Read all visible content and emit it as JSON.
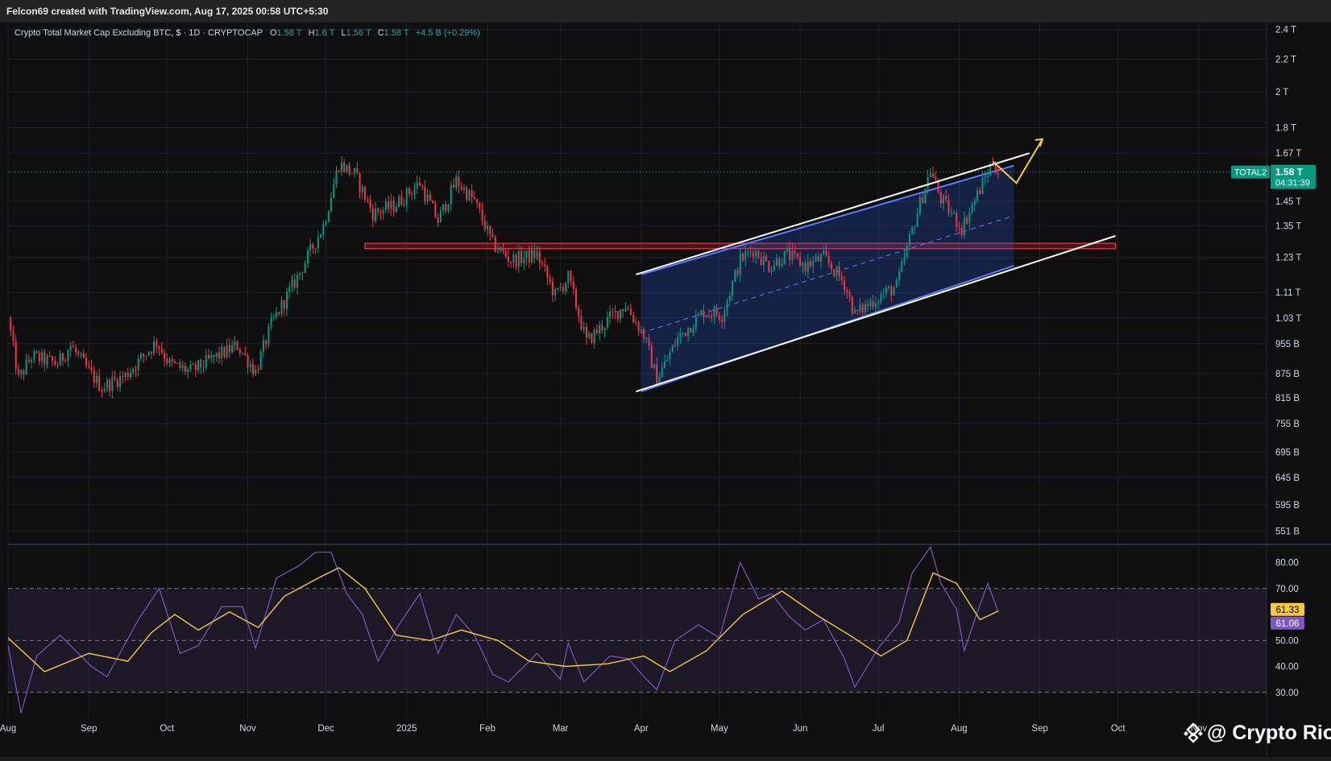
{
  "header": {
    "text": "Felcon69 created with TradingView.com, Aug 17, 2025 00:58 UTC+5:30"
  },
  "legend": {
    "symbol": "Crypto Total Market Cap Excluding BTC, $ · 1D · CRYPTOCAP",
    "o_label": "O",
    "o_value": "1.58 T",
    "h_label": "H",
    "h_value": "1.6 T",
    "l_label": "L",
    "l_value": "1.56 T",
    "c_label": "C",
    "c_value": "1.58 T",
    "change": "+4.5 B (+0.29%)"
  },
  "price_badge": {
    "ticker": "TOTAL2",
    "price": "1.58 T",
    "countdown": "04:31:39",
    "color": "#089981"
  },
  "rsi_badges": {
    "ma_value": "61.33",
    "ma_color": "#f7c843",
    "rsi_value": "61.06",
    "rsi_color": "#7e57c2"
  },
  "watermark": {
    "text": "@ Crypto Rio",
    "icon": "binance-diamond-icon"
  },
  "chart_data": [
    {
      "type": "candlestick",
      "title": "Crypto Total Market Cap Excluding BTC",
      "scale": "log",
      "y_tick_labels": [
        "2.4 T",
        "2.2 T",
        "2 T",
        "1.8 T",
        "1.67 T",
        "1.45 T",
        "1.35 T",
        "1.23 T",
        "1.11 T",
        "1.03 T",
        "955 B",
        "875 B",
        "815 B",
        "755 B",
        "695 B",
        "645 B",
        "595 B",
        "551 B"
      ],
      "y_tick_values": [
        2.4,
        2.2,
        2.0,
        1.8,
        1.67,
        1.45,
        1.35,
        1.23,
        1.11,
        1.03,
        0.955,
        0.875,
        0.815,
        0.755,
        0.695,
        0.645,
        0.595,
        0.551
      ],
      "ylim": [
        0.53,
        2.45
      ],
      "x_tick_labels": [
        "Aug",
        "Sep",
        "Oct",
        "Nov",
        "Dec",
        "2025",
        "Feb",
        "Mar",
        "Apr",
        "May",
        "Jun",
        "Jul",
        "Aug",
        "Sep",
        "Oct",
        "Nov"
      ],
      "x_tick_dates": [
        "2024-08-01",
        "2024-09-01",
        "2024-10-01",
        "2024-11-01",
        "2024-12-01",
        "2025-01-01",
        "2025-02-01",
        "2025-03-01",
        "2025-04-01",
        "2025-05-01",
        "2025-06-01",
        "2025-07-01",
        "2025-08-01",
        "2025-09-01",
        "2025-10-01",
        "2025-11-01"
      ],
      "date_range": [
        "2024-08-01",
        "2025-11-27"
      ],
      "last_date": "2025-08-16",
      "up_color": "#089981",
      "down_color": "#f23645",
      "grid": true,
      "price_path": [
        [
          "2024-08-01",
          1.03
        ],
        [
          "2024-08-05",
          0.86
        ],
        [
          "2024-08-10",
          0.92
        ],
        [
          "2024-08-20",
          0.9
        ],
        [
          "2024-08-25",
          0.95
        ],
        [
          "2024-09-01",
          0.88
        ],
        [
          "2024-09-06",
          0.84
        ],
        [
          "2024-09-15",
          0.87
        ],
        [
          "2024-09-27",
          0.96
        ],
        [
          "2024-10-02",
          0.9
        ],
        [
          "2024-10-10",
          0.88
        ],
        [
          "2024-10-20",
          0.92
        ],
        [
          "2024-10-28",
          0.95
        ],
        [
          "2024-11-04",
          0.88
        ],
        [
          "2024-11-10",
          1.01
        ],
        [
          "2024-11-20",
          1.16
        ],
        [
          "2024-11-30",
          1.35
        ],
        [
          "2024-12-06",
          1.62
        ],
        [
          "2024-12-12",
          1.57
        ],
        [
          "2024-12-19",
          1.4
        ],
        [
          "2024-12-27",
          1.43
        ],
        [
          "2025-01-06",
          1.53
        ],
        [
          "2025-01-13",
          1.37
        ],
        [
          "2025-01-20",
          1.54
        ],
        [
          "2025-01-27",
          1.45
        ],
        [
          "2025-02-03",
          1.28
        ],
        [
          "2025-02-10",
          1.22
        ],
        [
          "2025-02-20",
          1.24
        ],
        [
          "2025-02-27",
          1.1
        ],
        [
          "2025-03-04",
          1.16
        ],
        [
          "2025-03-11",
          0.96
        ],
        [
          "2025-03-20",
          1.03
        ],
        [
          "2025-03-26",
          1.07
        ],
        [
          "2025-04-02",
          0.98
        ],
        [
          "2025-04-07",
          0.86
        ],
        [
          "2025-04-15",
          0.97
        ],
        [
          "2025-04-25",
          1.05
        ],
        [
          "2025-05-02",
          1.04
        ],
        [
          "2025-05-09",
          1.22
        ],
        [
          "2025-05-14",
          1.26
        ],
        [
          "2025-05-20",
          1.2
        ],
        [
          "2025-05-27",
          1.24
        ],
        [
          "2025-06-03",
          1.2
        ],
        [
          "2025-06-10",
          1.23
        ],
        [
          "2025-06-18",
          1.14
        ],
        [
          "2025-06-22",
          1.04
        ],
        [
          "2025-06-30",
          1.09
        ],
        [
          "2025-07-08",
          1.13
        ],
        [
          "2025-07-15",
          1.37
        ],
        [
          "2025-07-21",
          1.59
        ],
        [
          "2025-07-25",
          1.46
        ],
        [
          "2025-08-02",
          1.34
        ],
        [
          "2025-08-08",
          1.48
        ],
        [
          "2025-08-14",
          1.63
        ],
        [
          "2025-08-16",
          1.58
        ]
      ],
      "resistance_zone": {
        "from": 1.262,
        "to": 1.282,
        "start": "2024-12-16",
        "end": "2025-09-30",
        "color": "#f23645"
      },
      "channel_upper": [
        [
          "2025-04-01",
          1.17
        ],
        [
          "2025-08-22",
          1.61
        ]
      ],
      "channel_lower": [
        [
          "2025-04-01",
          0.83
        ],
        [
          "2025-08-22",
          1.2
        ]
      ],
      "projection_upper": [
        [
          "2025-03-30",
          1.17
        ],
        [
          "2025-08-28",
          1.67
        ]
      ],
      "projection_lower": [
        [
          "2025-03-30",
          0.83
        ],
        [
          "2025-09-30",
          1.31
        ]
      ],
      "projection_path": [
        [
          "2025-08-14",
          1.63
        ],
        [
          "2025-08-23",
          1.53
        ],
        [
          "2025-09-02",
          1.74
        ]
      ],
      "current_price": 1.58
    },
    {
      "type": "line",
      "title": "",
      "y_tick_labels": [
        "80.00",
        "70.00",
        "50.00",
        "40.00",
        "30.00"
      ],
      "y_tick_values": [
        80,
        70,
        50,
        40,
        30
      ],
      "ylim": [
        20,
        87
      ],
      "band": [
        30,
        70
      ],
      "midline": 50,
      "series": [
        {
          "color": "#7e57c2",
          "points": [
            [
              "2024-08-01",
              48
            ],
            [
              "2024-08-06",
              22
            ],
            [
              "2024-08-12",
              44
            ],
            [
              "2024-08-21",
              52
            ],
            [
              "2024-09-02",
              40
            ],
            [
              "2024-09-08",
              36
            ],
            [
              "2024-09-20",
              58
            ],
            [
              "2024-09-28",
              70
            ],
            [
              "2024-10-06",
              45
            ],
            [
              "2024-10-13",
              48
            ],
            [
              "2024-10-22",
              63
            ],
            [
              "2024-10-30",
              63
            ],
            [
              "2024-11-04",
              47
            ],
            [
              "2024-11-12",
              74
            ],
            [
              "2024-11-21",
              79
            ],
            [
              "2024-11-27",
              84
            ],
            [
              "2024-12-03",
              84
            ],
            [
              "2024-12-09",
              68
            ],
            [
              "2024-12-15",
              60
            ],
            [
              "2024-12-21",
              42
            ],
            [
              "2024-12-29",
              56
            ],
            [
              "2025-01-06",
              68
            ],
            [
              "2025-01-13",
              45
            ],
            [
              "2025-01-20",
              60
            ],
            [
              "2025-01-27",
              52
            ],
            [
              "2025-02-03",
              37
            ],
            [
              "2025-02-09",
              34
            ],
            [
              "2025-02-20",
              45
            ],
            [
              "2025-03-01",
              35
            ],
            [
              "2025-03-04",
              49
            ],
            [
              "2025-03-10",
              34
            ],
            [
              "2025-03-20",
              44
            ],
            [
              "2025-03-27",
              43
            ],
            [
              "2025-04-03",
              35
            ],
            [
              "2025-04-07",
              31
            ],
            [
              "2025-04-14",
              50
            ],
            [
              "2025-04-23",
              56
            ],
            [
              "2025-05-01",
              51
            ],
            [
              "2025-05-09",
              80
            ],
            [
              "2025-05-16",
              66
            ],
            [
              "2025-05-21",
              68
            ],
            [
              "2025-05-28",
              59
            ],
            [
              "2025-06-03",
              54
            ],
            [
              "2025-06-10",
              58
            ],
            [
              "2025-06-18",
              43
            ],
            [
              "2025-06-22",
              32
            ],
            [
              "2025-07-01",
              47
            ],
            [
              "2025-07-09",
              57
            ],
            [
              "2025-07-14",
              76
            ],
            [
              "2025-07-21",
              86
            ],
            [
              "2025-07-25",
              72
            ],
            [
              "2025-07-31",
              62
            ],
            [
              "2025-08-03",
              46
            ],
            [
              "2025-08-07",
              58
            ],
            [
              "2025-08-12",
              72
            ],
            [
              "2025-08-16",
              61.06
            ]
          ]
        },
        {
          "color": "#f7c843",
          "points": [
            [
              "2024-08-01",
              51
            ],
            [
              "2024-08-15",
              38
            ],
            [
              "2024-09-01",
              45
            ],
            [
              "2024-09-16",
              42
            ],
            [
              "2024-09-25",
              53
            ],
            [
              "2024-10-04",
              60
            ],
            [
              "2024-10-13",
              54
            ],
            [
              "2024-10-25",
              61
            ],
            [
              "2024-11-05",
              55
            ],
            [
              "2024-11-15",
              67
            ],
            [
              "2024-11-28",
              74
            ],
            [
              "2024-12-06",
              78
            ],
            [
              "2024-12-16",
              70
            ],
            [
              "2024-12-28",
              52
            ],
            [
              "2025-01-10",
              50
            ],
            [
              "2025-01-22",
              54
            ],
            [
              "2025-02-05",
              50
            ],
            [
              "2025-02-17",
              42
            ],
            [
              "2025-03-03",
              40
            ],
            [
              "2025-03-19",
              41
            ],
            [
              "2025-04-02",
              44
            ],
            [
              "2025-04-12",
              38
            ],
            [
              "2025-04-26",
              46
            ],
            [
              "2025-05-10",
              60
            ],
            [
              "2025-05-25",
              69
            ],
            [
              "2025-06-07",
              60
            ],
            [
              "2025-06-20",
              52
            ],
            [
              "2025-07-02",
              44
            ],
            [
              "2025-07-12",
              50
            ],
            [
              "2025-07-22",
              76
            ],
            [
              "2025-07-31",
              72
            ],
            [
              "2025-08-09",
              58
            ],
            [
              "2025-08-16",
              61.33
            ]
          ]
        }
      ]
    }
  ]
}
